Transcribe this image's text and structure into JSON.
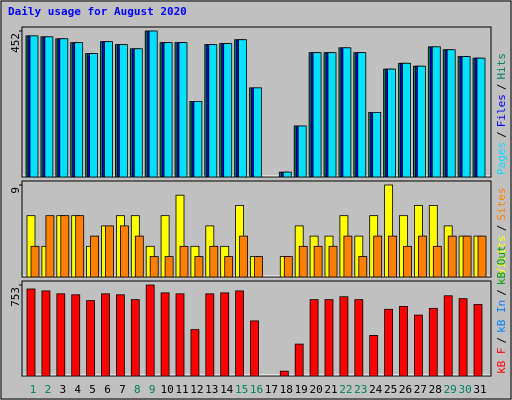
{
  "chart_data": [
    {
      "type": "bar",
      "title": "Daily usage for August 2020",
      "ylim": [
        0,
        452
      ],
      "yticks": [
        452
      ],
      "legend_separator": "/",
      "series": [
        {
          "name": "Hits",
          "color": "#00805c",
          "values": [
            437,
            434,
            428,
            416,
            382,
            419,
            410,
            397,
            452,
            416,
            416,
            234,
            410,
            413,
            425,
            276,
            0,
            15,
            158,
            385,
            385,
            400,
            385,
            200,
            334,
            352,
            343,
            403,
            394,
            373,
            368
          ]
        },
        {
          "name": "Files",
          "color": "#0000ff",
          "values": [
            437,
            434,
            428,
            416,
            382,
            419,
            410,
            397,
            452,
            416,
            416,
            234,
            410,
            413,
            425,
            276,
            0,
            15,
            158,
            385,
            385,
            400,
            385,
            200,
            334,
            352,
            343,
            403,
            394,
            373,
            368
          ]
        },
        {
          "name": "Pages",
          "color": "#00e0ff",
          "values": [
            437,
            434,
            428,
            416,
            382,
            419,
            410,
            397,
            452,
            416,
            416,
            234,
            410,
            413,
            425,
            276,
            0,
            15,
            158,
            385,
            385,
            400,
            385,
            200,
            334,
            352,
            343,
            403,
            394,
            373,
            368
          ]
        }
      ]
    },
    {
      "type": "bar",
      "ylim": [
        0,
        9
      ],
      "yticks": [
        9
      ],
      "legend_separator": "/",
      "series": [
        {
          "name": "Visits",
          "color": "#ffff00",
          "values": [
            6,
            3,
            6,
            6,
            3,
            5,
            6,
            6,
            3,
            6,
            8,
            3,
            5,
            3,
            7,
            2,
            0,
            2,
            5,
            4,
            4,
            6,
            4,
            6,
            9,
            6,
            7,
            7,
            5,
            4,
            4
          ]
        },
        {
          "name": "Sites",
          "color": "#ff8000",
          "values": [
            3,
            6,
            6,
            6,
            4,
            5,
            5,
            4,
            2,
            2,
            3,
            2,
            3,
            2,
            4,
            2,
            0,
            2,
            3,
            3,
            3,
            4,
            2,
            4,
            4,
            3,
            4,
            3,
            4,
            4,
            4
          ]
        }
      ]
    },
    {
      "type": "bar",
      "ylim": [
        0,
        753
      ],
      "yticks": [
        753
      ],
      "legend_separator": "/",
      "categories": [
        "1",
        "2",
        "3",
        "4",
        "5",
        "6",
        "7",
        "8",
        "9",
        "10",
        "11",
        "12",
        "13",
        "14",
        "15",
        "16",
        "17",
        "18",
        "19",
        "20",
        "21",
        "22",
        "23",
        "24",
        "25",
        "26",
        "27",
        "28",
        "29",
        "30",
        "31"
      ],
      "category_colors": [
        "#00805c",
        "#00805c",
        "#000000",
        "#000000",
        "#000000",
        "#000000",
        "#000000",
        "#00805c",
        "#00805c",
        "#000000",
        "#000000",
        "#000000",
        "#000000",
        "#000000",
        "#00805c",
        "#00805c",
        "#000000",
        "#000000",
        "#000000",
        "#000000",
        "#000000",
        "#00805c",
        "#00805c",
        "#000000",
        "#000000",
        "#000000",
        "#000000",
        "#000000",
        "#00805c",
        "#00805c",
        "#000000"
      ],
      "series": [
        {
          "name": "kB F",
          "color": "#ff0000",
          "values": [
            720,
            704,
            680,
            672,
            624,
            680,
            672,
            632,
            753,
            688,
            680,
            384,
            680,
            688,
            704,
            456,
            0,
            40,
            264,
            632,
            632,
            656,
            632,
            336,
            552,
            576,
            504,
            560,
            664,
            640,
            592
          ]
        },
        {
          "name": "kB In",
          "color": "#0080ff"
        },
        {
          "name": "kB Out",
          "color": "#00a000"
        }
      ]
    }
  ]
}
